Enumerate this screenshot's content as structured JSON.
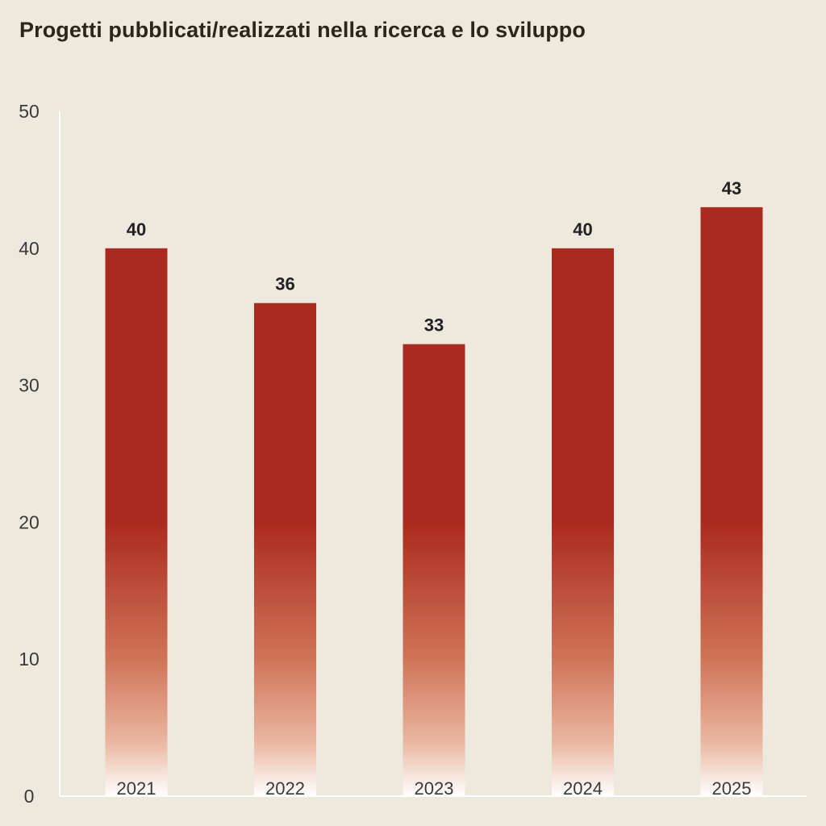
{
  "chart_data": {
    "type": "bar",
    "title": "Progetti pubblicati/realizzati nella ricerca e lo sviluppo",
    "categories": [
      "2021",
      "2022",
      "2023",
      "2024",
      "2025"
    ],
    "values": [
      40,
      36,
      33,
      40,
      43
    ],
    "data_labels": [
      "40",
      "36",
      "33",
      "40",
      "43"
    ],
    "ylim": [
      0,
      50
    ],
    "yticks": [
      0,
      10,
      20,
      30,
      40,
      50
    ],
    "ytick_labels": [
      "0",
      "10",
      "20",
      "30",
      "40",
      "50"
    ],
    "xlabel": "",
    "ylabel": "",
    "grid": false,
    "bar_color": "#ab2a1f",
    "bar_fade_color": "#ffffff",
    "background_color": "#ede9dc",
    "axis_color": "#ffffff"
  }
}
